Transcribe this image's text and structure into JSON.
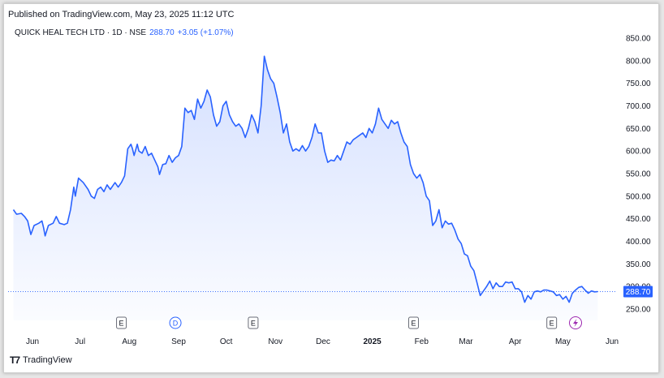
{
  "published": "Published on TradingView.com, May 23, 2025 11:12 UTC",
  "symbol": {
    "name": "QUICK HEAL TECH LTD · 1D · NSE",
    "last_price": "288.70",
    "change": "+3.05 (+1.07%)"
  },
  "brand": "TradingView",
  "colors": {
    "line": "#2962ff",
    "accent": "#2962ff",
    "event": "#9c27b0"
  },
  "chart_data": {
    "type": "area",
    "ylim": [
      230,
      870
    ],
    "y_ticks": [
      "850.00",
      "800.00",
      "750.00",
      "700.00",
      "650.00",
      "600.00",
      "550.00",
      "500.00",
      "450.00",
      "400.00",
      "350.00",
      "300.00",
      "250.00"
    ],
    "x_ticks": [
      {
        "label": "Jun",
        "date": "2024-06-01"
      },
      {
        "label": "Jul",
        "date": "2024-07-01"
      },
      {
        "label": "Aug",
        "date": "2024-08-01"
      },
      {
        "label": "Sep",
        "date": "2024-09-01"
      },
      {
        "label": "Oct",
        "date": "2024-10-01"
      },
      {
        "label": "Nov",
        "date": "2024-11-01"
      },
      {
        "label": "Dec",
        "date": "2024-12-01"
      },
      {
        "label": "2025",
        "date": "2025-01-01",
        "bold": true
      },
      {
        "label": "Feb",
        "date": "2025-02-01"
      },
      {
        "label": "Mar",
        "date": "2025-03-01"
      },
      {
        "label": "Apr",
        "date": "2025-04-01"
      },
      {
        "label": "May",
        "date": "2025-05-01"
      },
      {
        "label": "Jun",
        "date": "2025-06-01"
      }
    ],
    "last_price_label": "288.70",
    "last_value": 288.7,
    "events": [
      {
        "type": "E",
        "date": "2024-07-27"
      },
      {
        "type": "D",
        "date": "2024-08-30"
      },
      {
        "type": "E",
        "date": "2024-10-18"
      },
      {
        "type": "E",
        "date": "2025-01-27"
      },
      {
        "type": "E",
        "date": "2025-04-24"
      },
      {
        "type": "lightning",
        "date": "2025-05-09"
      }
    ],
    "series": [
      {
        "points": [
          [
            "2024-05-20",
            470
          ],
          [
            "2024-05-22",
            460
          ],
          [
            "2024-05-25",
            462
          ],
          [
            "2024-05-27",
            455
          ],
          [
            "2024-05-29",
            445
          ],
          [
            "2024-05-31",
            415
          ],
          [
            "2024-06-02",
            435
          ],
          [
            "2024-06-05",
            440
          ],
          [
            "2024-06-07",
            445
          ],
          [
            "2024-06-08",
            430
          ],
          [
            "2024-06-09",
            412
          ],
          [
            "2024-06-11",
            435
          ],
          [
            "2024-06-14",
            440
          ],
          [
            "2024-06-16",
            455
          ],
          [
            "2024-06-18",
            440
          ],
          [
            "2024-06-21",
            437
          ],
          [
            "2024-06-23",
            440
          ],
          [
            "2024-06-25",
            470
          ],
          [
            "2024-06-27",
            520
          ],
          [
            "2024-06-28",
            500
          ],
          [
            "2024-06-30",
            540
          ],
          [
            "2024-07-03",
            530
          ],
          [
            "2024-07-06",
            515
          ],
          [
            "2024-07-08",
            500
          ],
          [
            "2024-07-10",
            495
          ],
          [
            "2024-07-12",
            515
          ],
          [
            "2024-07-14",
            520
          ],
          [
            "2024-07-16",
            510
          ],
          [
            "2024-07-18",
            525
          ],
          [
            "2024-07-20",
            515
          ],
          [
            "2024-07-23",
            530
          ],
          [
            "2024-07-25",
            520
          ],
          [
            "2024-07-27",
            530
          ],
          [
            "2024-07-29",
            545
          ],
          [
            "2024-07-31",
            605
          ],
          [
            "2024-08-02",
            615
          ],
          [
            "2024-08-03",
            605
          ],
          [
            "2024-08-04",
            590
          ],
          [
            "2024-08-06",
            615
          ],
          [
            "2024-08-07",
            600
          ],
          [
            "2024-08-09",
            595
          ],
          [
            "2024-08-11",
            610
          ],
          [
            "2024-08-13",
            590
          ],
          [
            "2024-08-15",
            595
          ],
          [
            "2024-08-17",
            580
          ],
          [
            "2024-08-19",
            565
          ],
          [
            "2024-08-20",
            548
          ],
          [
            "2024-08-22",
            570
          ],
          [
            "2024-08-24",
            572
          ],
          [
            "2024-08-26",
            590
          ],
          [
            "2024-08-28",
            575
          ],
          [
            "2024-08-30",
            585
          ],
          [
            "2024-09-01",
            590
          ],
          [
            "2024-09-03",
            610
          ],
          [
            "2024-09-05",
            695
          ],
          [
            "2024-09-07",
            685
          ],
          [
            "2024-09-09",
            690
          ],
          [
            "2024-09-11",
            670
          ],
          [
            "2024-09-13",
            715
          ],
          [
            "2024-09-15",
            695
          ],
          [
            "2024-09-17",
            710
          ],
          [
            "2024-09-19",
            735
          ],
          [
            "2024-09-21",
            720
          ],
          [
            "2024-09-23",
            680
          ],
          [
            "2024-09-25",
            655
          ],
          [
            "2024-09-27",
            665
          ],
          [
            "2024-09-29",
            700
          ],
          [
            "2024-10-01",
            710
          ],
          [
            "2024-10-03",
            680
          ],
          [
            "2024-10-05",
            665
          ],
          [
            "2024-10-07",
            655
          ],
          [
            "2024-10-09",
            660
          ],
          [
            "2024-10-11",
            650
          ],
          [
            "2024-10-13",
            630
          ],
          [
            "2024-10-15",
            650
          ],
          [
            "2024-10-17",
            680
          ],
          [
            "2024-10-19",
            665
          ],
          [
            "2024-10-21",
            640
          ],
          [
            "2024-10-23",
            700
          ],
          [
            "2024-10-25",
            810
          ],
          [
            "2024-10-27",
            780
          ],
          [
            "2024-10-29",
            760
          ],
          [
            "2024-10-31",
            750
          ],
          [
            "2024-11-02",
            720
          ],
          [
            "2024-11-04",
            685
          ],
          [
            "2024-11-06",
            640
          ],
          [
            "2024-11-08",
            660
          ],
          [
            "2024-11-10",
            620
          ],
          [
            "2024-11-12",
            600
          ],
          [
            "2024-11-14",
            605
          ],
          [
            "2024-11-16",
            600
          ],
          [
            "2024-11-18",
            612
          ],
          [
            "2024-11-20",
            600
          ],
          [
            "2024-11-22",
            610
          ],
          [
            "2024-11-24",
            630
          ],
          [
            "2024-11-26",
            660
          ],
          [
            "2024-11-28",
            640
          ],
          [
            "2024-11-30",
            640
          ],
          [
            "2024-12-02",
            600
          ],
          [
            "2024-12-04",
            575
          ],
          [
            "2024-12-06",
            580
          ],
          [
            "2024-12-08",
            578
          ],
          [
            "2024-12-10",
            590
          ],
          [
            "2024-12-12",
            580
          ],
          [
            "2024-12-14",
            600
          ],
          [
            "2024-12-16",
            620
          ],
          [
            "2024-12-18",
            615
          ],
          [
            "2024-12-20",
            625
          ],
          [
            "2024-12-22",
            630
          ],
          [
            "2024-12-24",
            635
          ],
          [
            "2024-12-26",
            640
          ],
          [
            "2024-12-28",
            630
          ],
          [
            "2024-12-30",
            650
          ],
          [
            "2025-01-01",
            640
          ],
          [
            "2025-01-03",
            660
          ],
          [
            "2025-01-05",
            695
          ],
          [
            "2025-01-07",
            670
          ],
          [
            "2025-01-09",
            660
          ],
          [
            "2025-01-11",
            650
          ],
          [
            "2025-01-13",
            668
          ],
          [
            "2025-01-15",
            660
          ],
          [
            "2025-01-17",
            665
          ],
          [
            "2025-01-19",
            640
          ],
          [
            "2025-01-21",
            620
          ],
          [
            "2025-01-23",
            610
          ],
          [
            "2025-01-25",
            570
          ],
          [
            "2025-01-27",
            550
          ],
          [
            "2025-01-29",
            540
          ],
          [
            "2025-01-31",
            548
          ],
          [
            "2025-02-02",
            530
          ],
          [
            "2025-02-04",
            500
          ],
          [
            "2025-02-06",
            490
          ],
          [
            "2025-02-08",
            435
          ],
          [
            "2025-02-10",
            445
          ],
          [
            "2025-02-12",
            470
          ],
          [
            "2025-02-14",
            430
          ],
          [
            "2025-02-16",
            445
          ],
          [
            "2025-02-18",
            438
          ],
          [
            "2025-02-20",
            440
          ],
          [
            "2025-02-22",
            425
          ],
          [
            "2025-02-24",
            405
          ],
          [
            "2025-02-26",
            395
          ],
          [
            "2025-02-28",
            372
          ],
          [
            "2025-03-02",
            368
          ],
          [
            "2025-03-04",
            345
          ],
          [
            "2025-03-06",
            335
          ],
          [
            "2025-03-08",
            308
          ],
          [
            "2025-03-10",
            280
          ],
          [
            "2025-03-12",
            290
          ],
          [
            "2025-03-14",
            300
          ],
          [
            "2025-03-16",
            312
          ],
          [
            "2025-03-18",
            295
          ],
          [
            "2025-03-20",
            308
          ],
          [
            "2025-03-22",
            300
          ],
          [
            "2025-03-24",
            300
          ],
          [
            "2025-03-26",
            310
          ],
          [
            "2025-03-28",
            308
          ],
          [
            "2025-03-30",
            310
          ],
          [
            "2025-04-01",
            295
          ],
          [
            "2025-04-03",
            295
          ],
          [
            "2025-04-05",
            288
          ],
          [
            "2025-04-07",
            265
          ],
          [
            "2025-04-09",
            280
          ],
          [
            "2025-04-11",
            272
          ],
          [
            "2025-04-13",
            288
          ],
          [
            "2025-04-15",
            290
          ],
          [
            "2025-04-17",
            288
          ],
          [
            "2025-04-19",
            292
          ],
          [
            "2025-04-21",
            292
          ],
          [
            "2025-04-23",
            290
          ],
          [
            "2025-04-25",
            288
          ],
          [
            "2025-04-27",
            280
          ],
          [
            "2025-04-29",
            282
          ],
          [
            "2025-05-01",
            272
          ],
          [
            "2025-05-03",
            278
          ],
          [
            "2025-05-05",
            265
          ],
          [
            "2025-05-07",
            285
          ],
          [
            "2025-05-09",
            292
          ],
          [
            "2025-05-11",
            298
          ],
          [
            "2025-05-13",
            300
          ],
          [
            "2025-05-15",
            292
          ],
          [
            "2025-05-17",
            285
          ],
          [
            "2025-05-19",
            290
          ],
          [
            "2025-05-21",
            288
          ],
          [
            "2025-05-23",
            288.7
          ]
        ]
      }
    ]
  }
}
